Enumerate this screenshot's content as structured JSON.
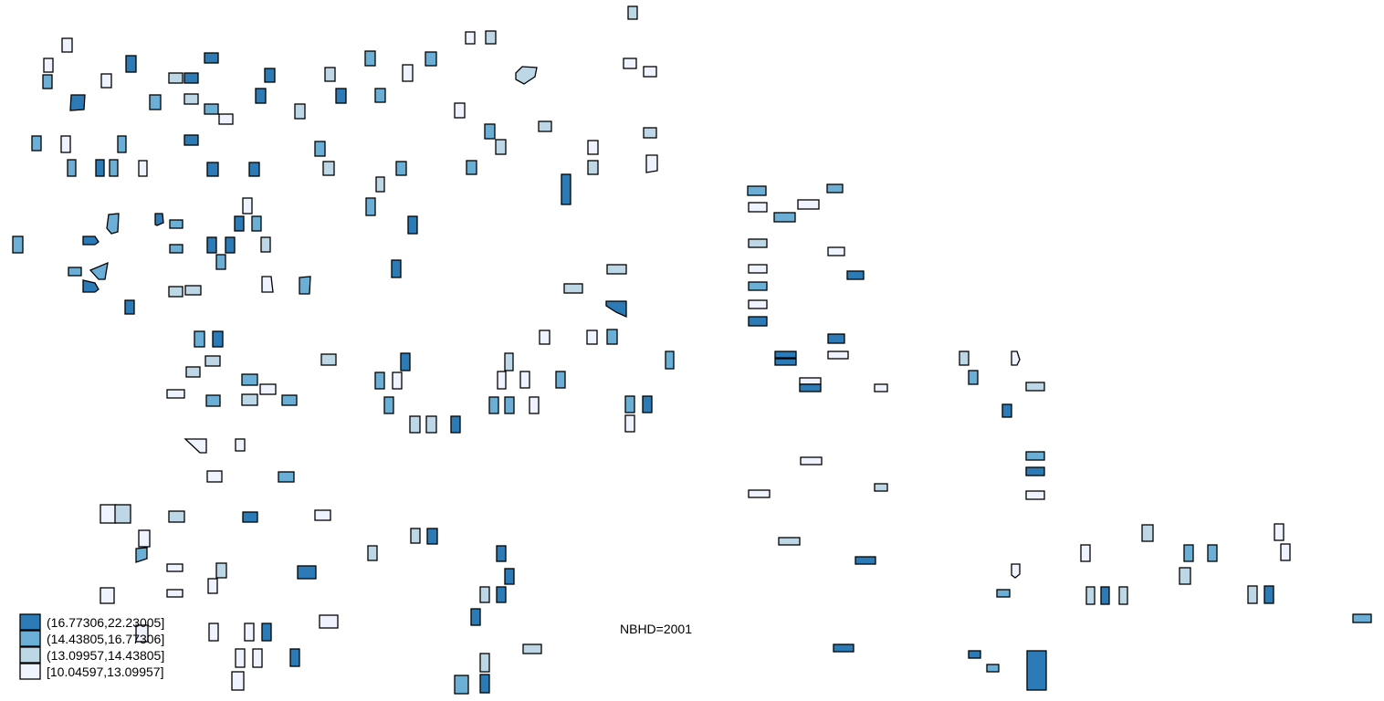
{
  "map": {
    "annotation": "NBHD=2001",
    "legend": {
      "classes": [
        {
          "label": "(16.77306,22.23005]",
          "color": "#2c7bb6",
          "class": 4
        },
        {
          "label": "(14.43805,16.77306]",
          "color": "#6baed6",
          "class": 3
        },
        {
          "label": "(13.09957,14.43805]",
          "color": "#bdd7e7",
          "class": 2
        },
        {
          "label": "[10.04597,13.09957]",
          "color": "#eff3ff",
          "class": 1
        }
      ]
    },
    "parcel_count": 197
  }
}
